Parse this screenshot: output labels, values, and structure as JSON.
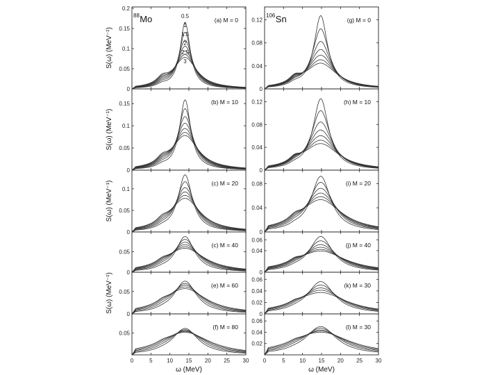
{
  "chart_data": {
    "type": "line",
    "x_tick_labels": [
      "0",
      "5",
      "10",
      "15",
      "20",
      "25",
      "30"
    ],
    "xlim": [
      0,
      30
    ],
    "xlabel": "ω (MeV)",
    "ylabel": "S(ω) (MeV⁻¹)",
    "columns": [
      {
        "nucleus_mass": "88",
        "nucleus_symbol": "Mo",
        "panels": [
          {
            "label": "(a) M =  0",
            "ylim": [
              0,
              0.2
            ],
            "ytick_values": [
              0,
              0.05,
              0.1,
              0.15,
              0.2
            ],
            "ytick_labels": [
              "0",
              "0.05",
              "0.1",
              "0.15",
              "0.2"
            ],
            "peak_center": 14,
            "base_peak_width": 1.6,
            "peaks": [
              0.165,
              0.14,
              0.12,
              0.105,
              0.093,
              0.084,
              0.077
            ],
            "shoulder": 0.018,
            "temperature_marks": [
              "0.5",
              "1",
              "1.5",
              "2",
              "2.5",
              "3"
            ]
          },
          {
            "label": "(b) M = 10",
            "ylim": [
              0,
              0.18
            ],
            "ytick_values": [
              0,
              0.05,
              0.1,
              0.15
            ],
            "ytick_labels": [
              "0",
              "0.05",
              "0.1",
              "0.15"
            ],
            "peak_center": 14,
            "base_peak_width": 1.8,
            "peaks": [
              0.158,
              0.138,
              0.12,
              0.105,
              0.093,
              0.084,
              0.077
            ],
            "shoulder": 0.015
          },
          {
            "label": "(c) M = 20",
            "ylim": [
              0,
              0.14
            ],
            "ytick_values": [
              0,
              0.05,
              0.1
            ],
            "ytick_labels": [
              "0",
              "0.05",
              "0.1"
            ],
            "peak_center": 14,
            "base_peak_width": 2.3,
            "peaks": [
              0.132,
              0.116,
              0.102,
              0.092,
              0.084,
              0.077
            ],
            "shoulder": 0.012
          },
          {
            "label": "(c) M = 40",
            "ylim": [
              0,
              0.095
            ],
            "ytick_values": [
              0,
              0.05
            ],
            "ytick_labels": [
              "0",
              "0.05"
            ],
            "peak_center": 14,
            "base_peak_width": 3.0,
            "peaks": [
              0.087,
              0.08,
              0.073,
              0.067,
              0.062,
              0.058
            ],
            "shoulder": 0.008
          },
          {
            "label": "(e) M = 60",
            "ylim": [
              0,
              0.09
            ],
            "ytick_values": [
              0,
              0.05
            ],
            "ytick_labels": [
              "0",
              "0.05"
            ],
            "peak_center": 14,
            "base_peak_width": 3.6,
            "peaks": [
              0.073,
              0.068,
              0.064,
              0.06,
              0.056
            ],
            "shoulder": 0.006
          },
          {
            "label": "(f) M = 80",
            "ylim": [
              0,
              0.09
            ],
            "ytick_values": [
              0.05
            ],
            "ytick_labels": [
              "0.05"
            ],
            "peak_center": 14,
            "base_peak_width": 4.2,
            "peaks": [
              0.06,
              0.057,
              0.055,
              0.053,
              0.051
            ],
            "shoulder": 0.004
          }
        ]
      },
      {
        "nucleus_mass": "106",
        "nucleus_symbol": "Sn",
        "panels": [
          {
            "label": "(g) M =  0",
            "ylim": [
              0,
              0.14
            ],
            "ytick_values": [
              0,
              0.04,
              0.08,
              0.12
            ],
            "ytick_labels": [
              "0",
              "0.04",
              "0.08",
              "0.12"
            ],
            "peak_center": 14.8,
            "base_peak_width": 2.2,
            "peaks": [
              0.127,
              0.104,
              0.082,
              0.068,
              0.058,
              0.05,
              0.044
            ],
            "shoulder": 0.012
          },
          {
            "label": "(h) M = 10",
            "ylim": [
              0,
              0.14
            ],
            "ytick_values": [
              0,
              0.04,
              0.08,
              0.12
            ],
            "ytick_labels": [
              "0",
              "0.04",
              "0.08",
              "0.12"
            ],
            "peak_center": 14.8,
            "base_peak_width": 2.5,
            "peaks": [
              0.125,
              0.104,
              0.084,
              0.07,
              0.06,
              0.052,
              0.046
            ],
            "shoulder": 0.01
          },
          {
            "label": "(i) M = 20",
            "ylim": [
              0,
              0.1
            ],
            "ytick_values": [
              0,
              0.04,
              0.08
            ],
            "ytick_labels": [
              "0",
              "0.04",
              "0.08"
            ],
            "peak_center": 14.8,
            "base_peak_width": 3.2,
            "peaks": [
              0.092,
              0.082,
              0.072,
              0.064,
              0.058,
              0.053
            ],
            "shoulder": 0.008
          },
          {
            "label": "(j) M = 40",
            "ylim": [
              0,
              0.072
            ],
            "ytick_values": [
              0,
              0.04,
              0.06
            ],
            "ytick_labels": [
              "0",
              "0.04",
              "0.06"
            ],
            "peak_center": 14.8,
            "base_peak_width": 3.8,
            "peaks": [
              0.066,
              0.058,
              0.051,
              0.046,
              0.042,
              0.039
            ],
            "shoulder": 0.006
          },
          {
            "label": "(k) M = 30",
            "ylim": [
              0,
              0.07
            ],
            "ytick_values": [
              0,
              0.02,
              0.04,
              0.06
            ],
            "ytick_labels": [
              "0",
              "0.02",
              "0.04",
              "0.06"
            ],
            "peak_center": 14.8,
            "base_peak_width": 4.4,
            "peaks": [
              0.056,
              0.05,
              0.045,
              0.041,
              0.037
            ],
            "shoulder": 0.004
          },
          {
            "label": "(l) M = 30",
            "ylim": [
              0,
              0.07
            ],
            "ytick_values": [
              0.02,
              0.04,
              0.06
            ],
            "ytick_labels": [
              "0.02",
              "0.04",
              "0.06"
            ],
            "peak_center": 14.8,
            "base_peak_width": 5.0,
            "peaks": [
              0.05,
              0.047,
              0.044,
              0.042,
              0.04
            ],
            "shoulder": 0.003
          }
        ]
      }
    ]
  }
}
